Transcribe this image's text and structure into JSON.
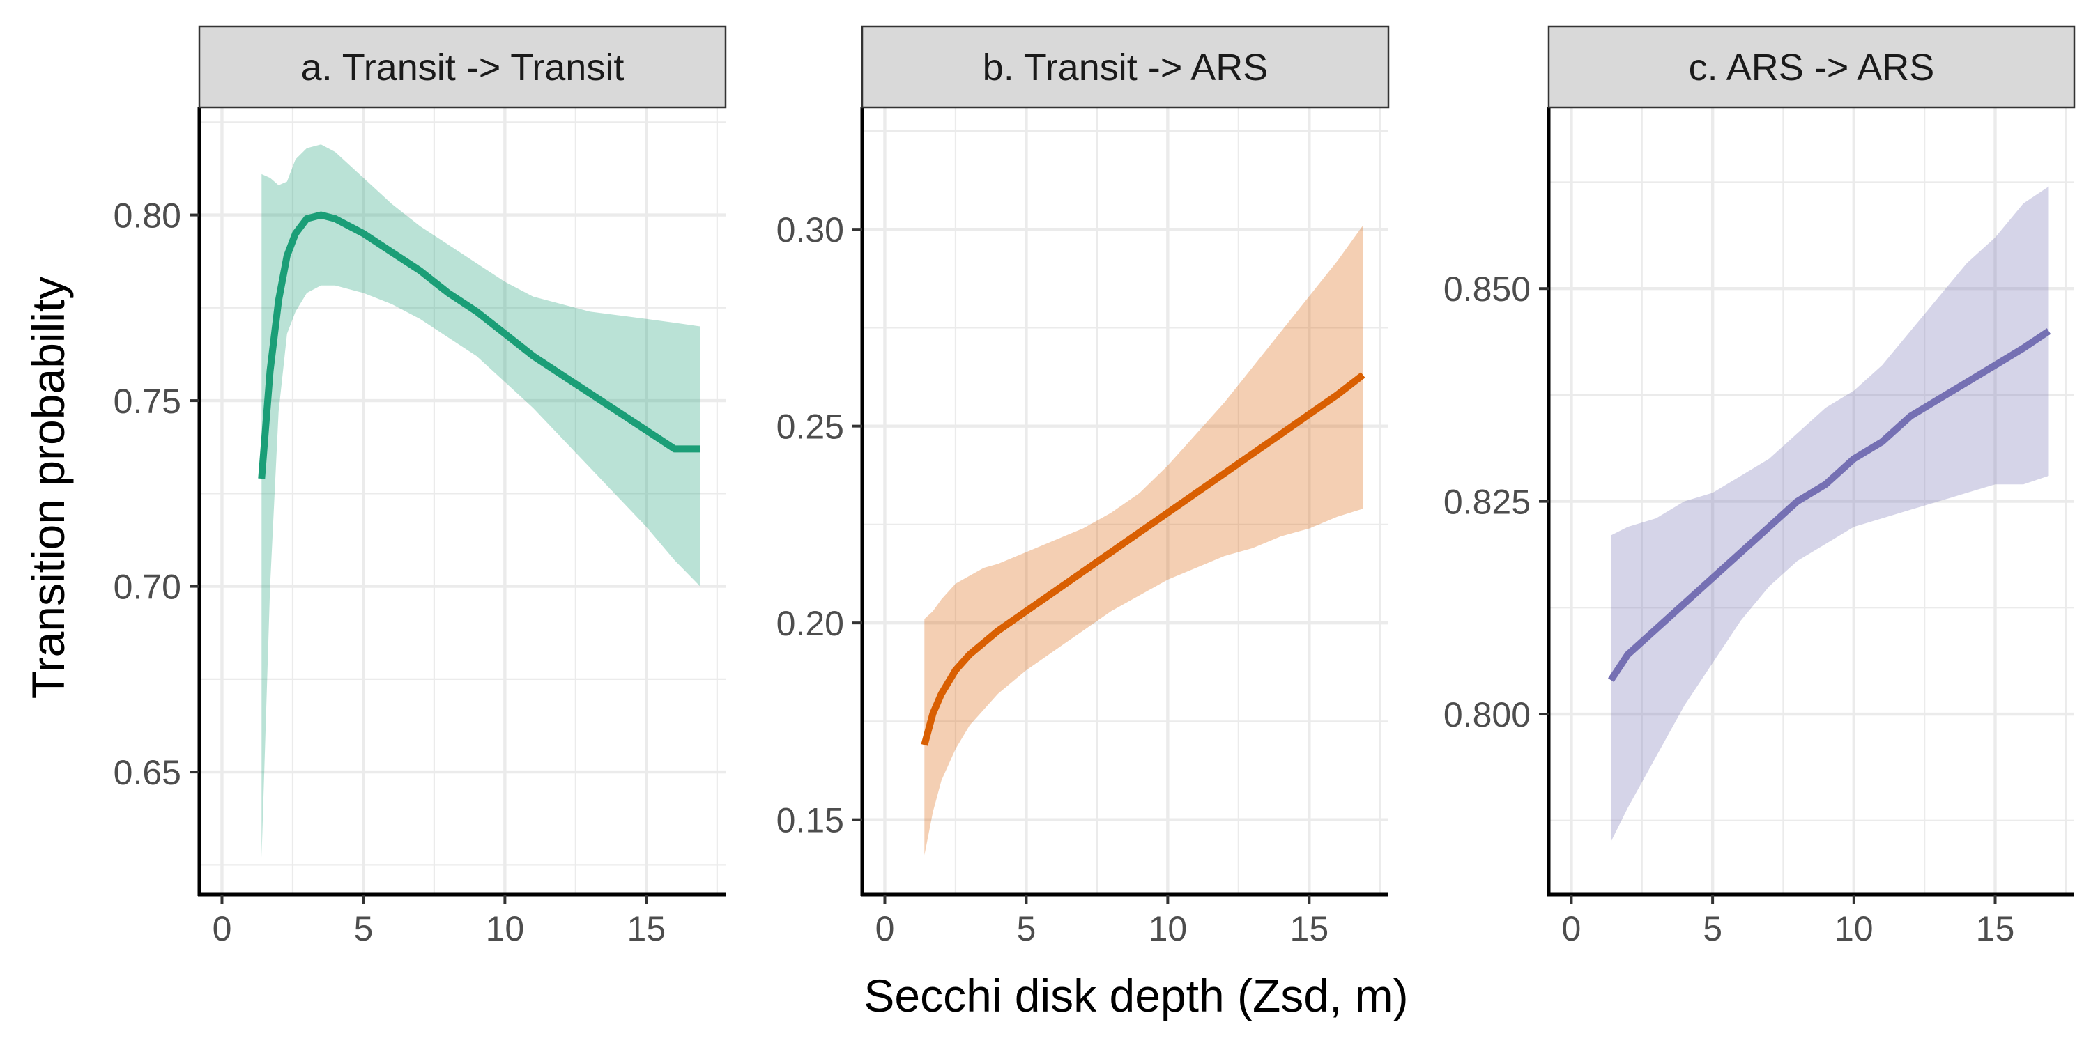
{
  "chart_data": [
    {
      "type": "line",
      "title": "a. Transit -> Transit",
      "xlabel": "Secchi disk depth (Zsd, m)",
      "ylabel": "Transition probability",
      "xlim": [
        -0.8,
        17.8
      ],
      "ylim": [
        0.617,
        0.829
      ],
      "x_ticks": [
        0,
        5,
        10,
        15
      ],
      "x_tick_labels": [
        "0",
        "5",
        "10",
        "15"
      ],
      "y_ticks": [
        0.65,
        0.7,
        0.75,
        0.8
      ],
      "y_tick_labels": [
        "0.65",
        "0.70",
        "0.75",
        "0.80"
      ],
      "grid": true,
      "color": "#1b9e77",
      "band_color": "#1b9e77",
      "series": [
        {
          "x": [
            1.4,
            1.7,
            2.0,
            2.3,
            2.6,
            3.0,
            3.5,
            4.0,
            5.0,
            6.0,
            7.0,
            8.0,
            9.0,
            10.0,
            11.0,
            12.0,
            13.0,
            14.0,
            15.0,
            16.0,
            16.9
          ],
          "y": [
            0.729,
            0.758,
            0.777,
            0.789,
            0.795,
            0.799,
            0.8,
            0.799,
            0.795,
            0.79,
            0.785,
            0.779,
            0.774,
            0.768,
            0.762,
            0.757,
            0.752,
            0.747,
            0.742,
            0.737,
            0.737
          ],
          "lower": [
            0.627,
            0.7,
            0.747,
            0.768,
            0.774,
            0.779,
            0.781,
            0.781,
            0.779,
            0.776,
            0.772,
            0.767,
            0.762,
            0.755,
            0.748,
            0.74,
            0.732,
            0.724,
            0.716,
            0.707,
            0.7
          ],
          "upper": [
            0.811,
            0.81,
            0.808,
            0.809,
            0.815,
            0.818,
            0.819,
            0.817,
            0.81,
            0.803,
            0.797,
            0.792,
            0.787,
            0.782,
            0.778,
            0.776,
            0.774,
            0.773,
            0.772,
            0.771,
            0.77
          ]
        }
      ]
    },
    {
      "type": "line",
      "title": "b. Transit -> ARS",
      "xlabel": "Secchi disk depth (Zsd, m)",
      "ylabel": "Transition probability",
      "xlim": [
        -0.8,
        17.8
      ],
      "ylim": [
        0.131,
        0.331
      ],
      "x_ticks": [
        0,
        5,
        10,
        15
      ],
      "x_tick_labels": [
        "0",
        "5",
        "10",
        "15"
      ],
      "y_ticks": [
        0.15,
        0.2,
        0.25,
        0.3
      ],
      "y_tick_labels": [
        "0.15",
        "0.20",
        "0.25",
        "0.30"
      ],
      "grid": true,
      "color": "#d95f02",
      "band_color": "#d95f02",
      "series": [
        {
          "x": [
            1.4,
            1.7,
            2.0,
            2.5,
            3.0,
            3.5,
            4.0,
            5.0,
            6.0,
            7.0,
            8.0,
            9.0,
            10.0,
            11.0,
            12.0,
            13.0,
            14.0,
            15.0,
            16.0,
            16.9
          ],
          "y": [
            0.169,
            0.177,
            0.182,
            0.188,
            0.192,
            0.195,
            0.198,
            0.203,
            0.208,
            0.213,
            0.218,
            0.223,
            0.228,
            0.233,
            0.238,
            0.243,
            0.248,
            0.253,
            0.258,
            0.263
          ],
          "lower": [
            0.141,
            0.152,
            0.16,
            0.168,
            0.174,
            0.178,
            0.182,
            0.188,
            0.193,
            0.198,
            0.203,
            0.207,
            0.211,
            0.214,
            0.217,
            0.219,
            0.222,
            0.224,
            0.227,
            0.229
          ],
          "upper": [
            0.201,
            0.203,
            0.206,
            0.21,
            0.212,
            0.214,
            0.215,
            0.218,
            0.221,
            0.224,
            0.228,
            0.233,
            0.24,
            0.248,
            0.256,
            0.265,
            0.274,
            0.283,
            0.292,
            0.301
          ]
        }
      ]
    },
    {
      "type": "line",
      "title": "c. ARS -> ARS",
      "xlabel": "Secchi disk depth (Zsd, m)",
      "ylabel": "Transition probability",
      "xlim": [
        -0.8,
        17.8
      ],
      "ylim": [
        0.7788,
        0.8713
      ],
      "x_ticks": [
        0,
        5,
        10,
        15
      ],
      "x_tick_labels": [
        "0",
        "5",
        "10",
        "15"
      ],
      "y_ticks": [
        0.8,
        0.825,
        0.85
      ],
      "y_tick_labels": [
        "0.800",
        "0.825",
        "0.850"
      ],
      "grid": true,
      "color": "#7570b3",
      "band_color": "#7570b3",
      "series": [
        {
          "x": [
            1.4,
            2.0,
            3.0,
            4.0,
            5.0,
            6.0,
            7.0,
            8.0,
            9.0,
            10.0,
            11.0,
            12.0,
            13.0,
            14.0,
            15.0,
            16.0,
            16.9
          ],
          "y": [
            0.804,
            0.807,
            0.81,
            0.813,
            0.816,
            0.819,
            0.822,
            0.825,
            0.827,
            0.83,
            0.832,
            0.835,
            0.837,
            0.839,
            0.841,
            0.843,
            0.845
          ],
          "lower": [
            0.785,
            0.789,
            0.795,
            0.801,
            0.806,
            0.811,
            0.815,
            0.818,
            0.82,
            0.822,
            0.823,
            0.824,
            0.825,
            0.826,
            0.827,
            0.827,
            0.828
          ],
          "upper": [
            0.821,
            0.822,
            0.823,
            0.825,
            0.826,
            0.828,
            0.83,
            0.833,
            0.836,
            0.838,
            0.841,
            0.845,
            0.849,
            0.853,
            0.856,
            0.86,
            0.862
          ]
        }
      ]
    }
  ],
  "shared": {
    "xlabel": "Secchi disk depth (Zsd, m)",
    "ylabel": "Transition probability"
  }
}
